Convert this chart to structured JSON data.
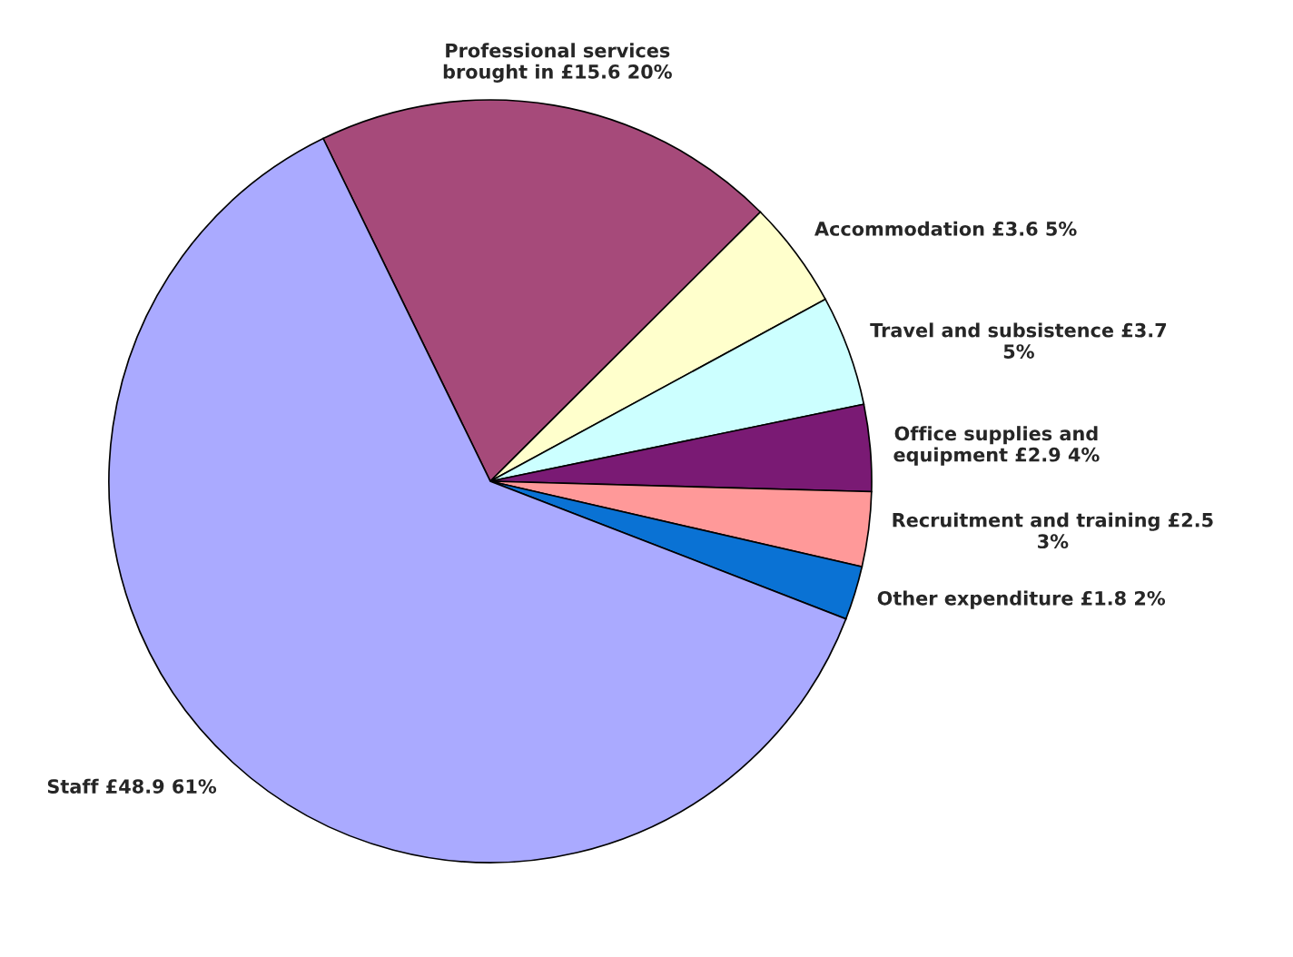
{
  "chart_data": {
    "type": "pie",
    "categories": [
      "Professional services\nbrought in £15.6 20%",
      "Accommodation £3.6 5%",
      "Travel and subsistence £3.7\n5%",
      "Office supplies and\nequipment £2.9 4%",
      "Recruitment and training £2.5\n3%",
      "Other expenditure £1.8 2%",
      "Staff £48.9 61%"
    ],
    "values": [
      15.6,
      3.6,
      3.7,
      2.9,
      2.5,
      1.8,
      48.9
    ],
    "colors": [
      "#a64a7a",
      "#ffffcc",
      "#ccffff",
      "#7a1a74",
      "#ff9999",
      "#0a72d4",
      "#aaaaff"
    ],
    "legend": false
  }
}
